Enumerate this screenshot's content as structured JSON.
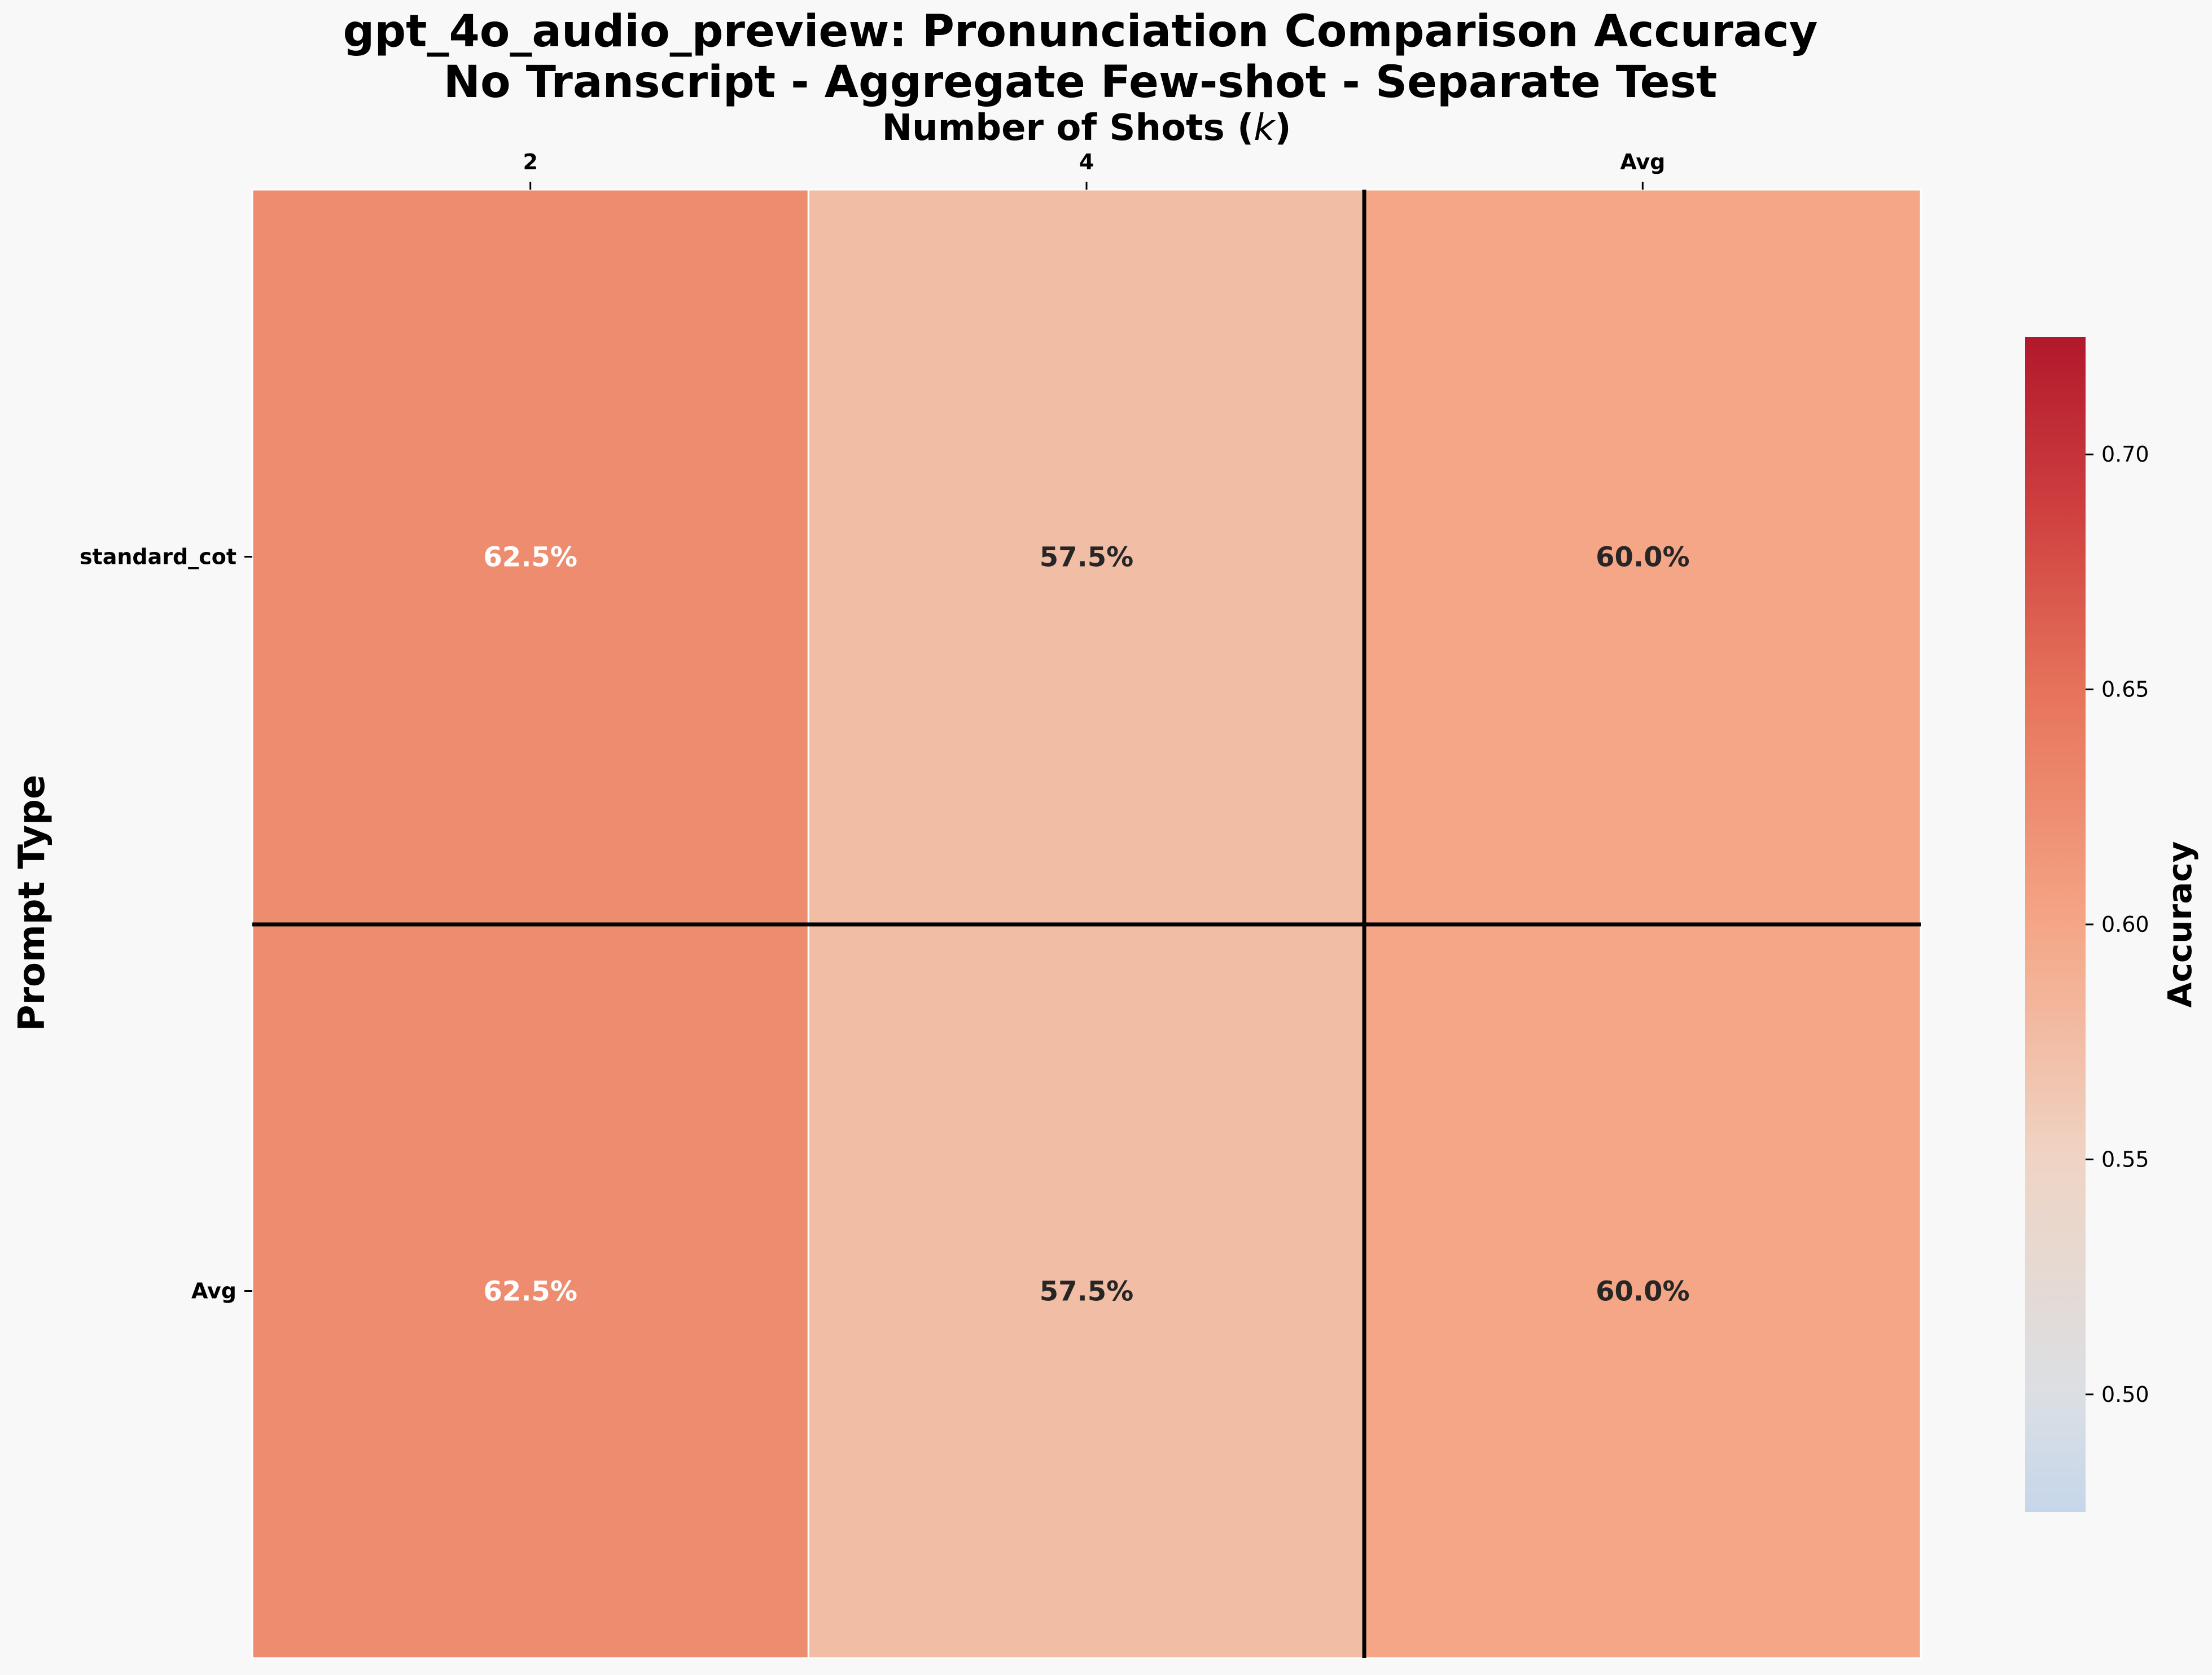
{
  "chart_data": {
    "type": "heatmap",
    "title": "gpt_4o_audio_preview: Pronunciation Comparison Accuracy",
    "subtitle": "No Transcript - Aggregate Few-shot - Separate Test",
    "xlabel": "Number of Shots (k)",
    "ylabel": "Prompt Type",
    "x_categories": [
      "2",
      "4",
      "Avg"
    ],
    "y_categories": [
      "standard_cot",
      "Avg"
    ],
    "values": [
      [
        0.625,
        0.575,
        0.6
      ],
      [
        0.625,
        0.575,
        0.6
      ]
    ],
    "cell_labels": [
      [
        "62.5%",
        "57.5%",
        "60.0%"
      ],
      [
        "62.5%",
        "57.5%",
        "60.0%"
      ]
    ],
    "colorbar": {
      "label": "Accuracy",
      "vmin": 0.475,
      "vmax": 0.725,
      "ticks": [
        "0.50",
        "0.55",
        "0.60",
        "0.65",
        "0.70"
      ],
      "colormap": "coolwarm_red"
    },
    "colors": {
      "cell_high": "#f08e72",
      "cell_mid": "#f5a283",
      "cell_low": "#f7b79c",
      "cbar_top": "#b2182b",
      "cbar_bottom": "#c6d6ea"
    }
  }
}
